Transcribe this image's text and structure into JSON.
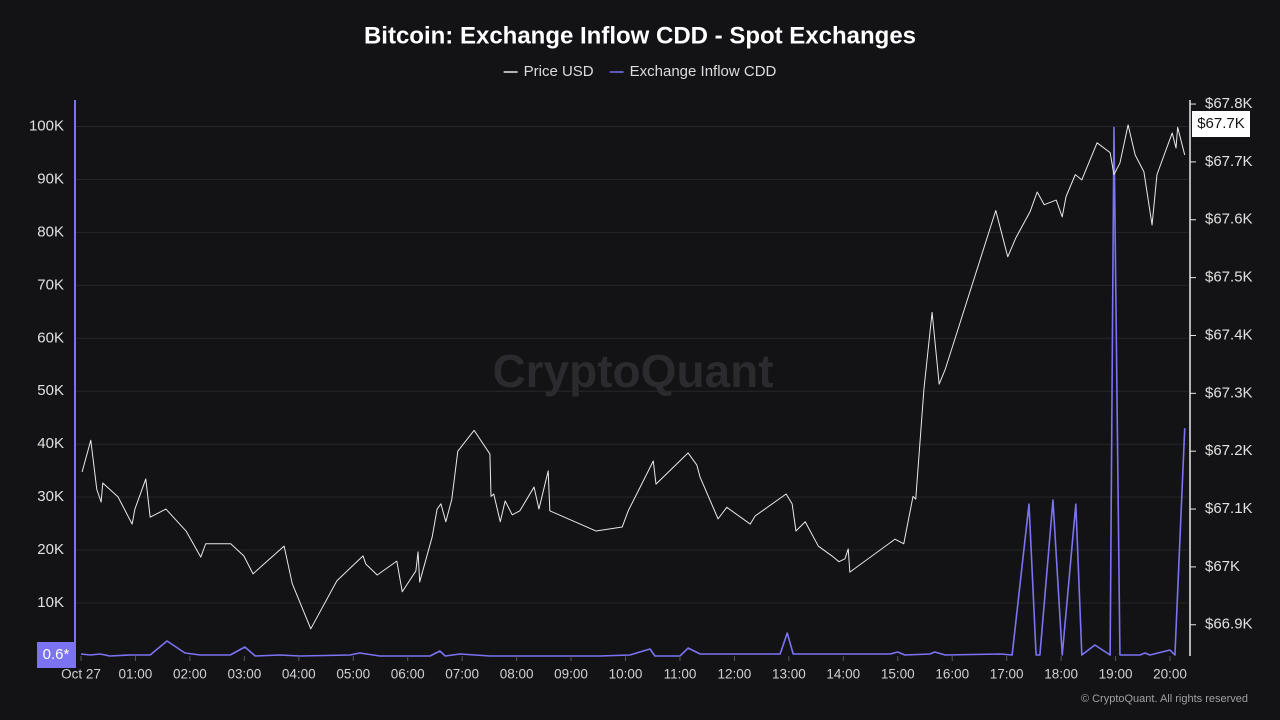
{
  "chart_data": {
    "type": "line",
    "title": "Bitcoin: Exchange Inflow CDD - Spot Exchanges",
    "watermark": "CryptoQuant",
    "footer": "© CryptoQuant. All rights reserved",
    "current_price_label": "$67.7K",
    "current_inflow_label": "0.6*",
    "xlim": [
      -0.11,
      20.33
    ],
    "xticks": [
      {
        "value": 0,
        "label": "Oct 27"
      },
      {
        "value": 1,
        "label": "01:00"
      },
      {
        "value": 2,
        "label": "02:00"
      },
      {
        "value": 3,
        "label": "03:00"
      },
      {
        "value": 4,
        "label": "04:00"
      },
      {
        "value": 5,
        "label": "05:00"
      },
      {
        "value": 6,
        "label": "06:00"
      },
      {
        "value": 7,
        "label": "07:00"
      },
      {
        "value": 8,
        "label": "08:00"
      },
      {
        "value": 9,
        "label": "09:00"
      },
      {
        "value": 10,
        "label": "10:00"
      },
      {
        "value": 11,
        "label": "11:00"
      },
      {
        "value": 12,
        "label": "12:00"
      },
      {
        "value": 13,
        "label": "13:00"
      },
      {
        "value": 14,
        "label": "14:00"
      },
      {
        "value": 15,
        "label": "15:00"
      },
      {
        "value": 16,
        "label": "16:00"
      },
      {
        "value": 17,
        "label": "17:00"
      },
      {
        "value": 18,
        "label": "18:00"
      },
      {
        "value": 19,
        "label": "19:00"
      },
      {
        "value": 20,
        "label": "20:00"
      }
    ],
    "ylim": [
      0,
      105000
    ],
    "yticks": [
      {
        "value": 10000,
        "label": "10K"
      },
      {
        "value": 20000,
        "label": "20K"
      },
      {
        "value": 30000,
        "label": "30K"
      },
      {
        "value": 40000,
        "label": "40K"
      },
      {
        "value": 50000,
        "label": "50K"
      },
      {
        "value": 60000,
        "label": "60K"
      },
      {
        "value": 70000,
        "label": "70K"
      },
      {
        "value": 80000,
        "label": "80K"
      },
      {
        "value": 90000,
        "label": "90K"
      },
      {
        "value": 100000,
        "label": "100K"
      }
    ],
    "y2lim": [
      66846,
      67807
    ],
    "y2ticks": [
      {
        "value": 66900,
        "label": "$66.9K"
      },
      {
        "value": 67000,
        "label": "$67K"
      },
      {
        "value": 67100,
        "label": "$67.1K"
      },
      {
        "value": 67200,
        "label": "$67.2K"
      },
      {
        "value": 67300,
        "label": "$67.3K"
      },
      {
        "value": 67400,
        "label": "$67.4K"
      },
      {
        "value": 67500,
        "label": "$67.5K"
      },
      {
        "value": 67600,
        "label": "$67.6K"
      },
      {
        "value": 67700,
        "label": "$67.7K"
      },
      {
        "value": 67800,
        "label": "$67.8K"
      }
    ],
    "grid": true,
    "series": [
      {
        "name": "Price USD",
        "color": "#e8e8e8",
        "axis": "y2",
        "x": [
          0.02,
          0.18,
          0.29,
          0.37,
          0.4,
          0.68,
          0.94,
          0.99,
          1.19,
          1.27,
          1.56,
          1.93,
          2.2,
          2.29,
          2.75,
          2.99,
          3.16,
          3.36,
          3.73,
          3.88,
          4.22,
          4.7,
          5.18,
          5.23,
          5.44,
          5.8,
          5.9,
          6.15,
          6.19,
          6.22,
          6.45,
          6.54,
          6.61,
          6.7,
          6.81,
          6.92,
          7.22,
          7.51,
          7.53,
          7.58,
          7.7,
          7.79,
          7.92,
          8.06,
          8.32,
          8.41,
          8.58,
          8.61,
          9.46,
          9.94,
          10.05,
          10.51,
          10.56,
          11.15,
          11.31,
          11.37,
          11.7,
          11.86,
          12.29,
          12.38,
          12.95,
          13.06,
          13.13,
          13.3,
          13.54,
          13.79,
          13.92,
          14.03,
          14.09,
          14.12,
          14.95,
          15.11,
          15.28,
          15.33,
          15.48,
          15.63,
          15.76,
          15.87,
          16.8,
          17.02,
          17.17,
          17.43,
          17.56,
          17.69,
          17.91,
          18.02,
          18.09,
          18.26,
          18.38,
          18.66,
          18.9,
          18.97,
          19.08,
          19.23,
          19.36,
          19.52,
          19.67,
          19.76,
          20.04,
          20.11,
          20.14,
          20.27
        ],
        "values": [
          67164,
          67219,
          67134,
          67112,
          67145,
          67121,
          67074,
          67100,
          67152,
          67086,
          67100,
          67062,
          67017,
          67040,
          67040,
          67019,
          66988,
          67005,
          67036,
          66971,
          66893,
          66976,
          67019,
          67005,
          66986,
          67010,
          66957,
          66993,
          67026,
          66974,
          67052,
          67100,
          67109,
          67078,
          67117,
          67200,
          67236,
          67195,
          67122,
          67126,
          67078,
          67114,
          67090,
          67097,
          67138,
          67100,
          67166,
          67097,
          67062,
          67069,
          67097,
          67183,
          67143,
          67197,
          67176,
          67155,
          67083,
          67103,
          67074,
          67088,
          67126,
          67109,
          67062,
          67078,
          67036,
          67019,
          67009,
          67014,
          67031,
          66991,
          67048,
          67040,
          67122,
          67117,
          67307,
          67440,
          67316,
          67341,
          67616,
          67536,
          67569,
          67614,
          67648,
          67626,
          67634,
          67605,
          67640,
          67678,
          67669,
          67733,
          67716,
          67678,
          67698,
          67764,
          67712,
          67683,
          67591,
          67678,
          67750,
          67724,
          67760,
          67712
        ]
      },
      {
        "name": "Exchange Inflow CDD",
        "color": "#7b73f2",
        "x": [
          0,
          0.17,
          0.35,
          0.53,
          0.9,
          1.27,
          1.58,
          1.91,
          2.19,
          2.74,
          3.01,
          3.2,
          3.65,
          4.02,
          4.94,
          5.12,
          5.49,
          6.41,
          6.59,
          6.69,
          6.96,
          7.51,
          9.53,
          10.08,
          10.45,
          10.54,
          11.0,
          11.15,
          11.37,
          12.84,
          12.97,
          13.08,
          14.86,
          15.0,
          15.13,
          15.59,
          15.68,
          15.87,
          16.88,
          17.1,
          17.41,
          17.54,
          17.61,
          17.85,
          18.02,
          18.27,
          18.38,
          18.62,
          18.9,
          18.97,
          19.08,
          19.45,
          19.54,
          19.63,
          20.0,
          20.09,
          20.27
        ],
        "values": [
          377,
          189,
          377,
          0,
          189,
          189,
          2830,
          566,
          189,
          189,
          1698,
          0,
          189,
          0,
          189,
          566,
          0,
          0,
          943,
          0,
          377,
          0,
          0,
          189,
          1321,
          0,
          0,
          1509,
          377,
          377,
          4340,
          377,
          377,
          755,
          189,
          377,
          755,
          189,
          377,
          189,
          28680,
          189,
          189,
          29430,
          189,
          28680,
          189,
          2075,
          189,
          99810,
          189,
          189,
          566,
          189,
          1132,
          189,
          43020
        ]
      }
    ]
  }
}
